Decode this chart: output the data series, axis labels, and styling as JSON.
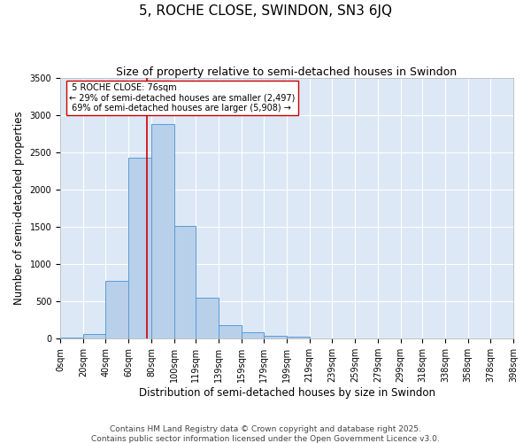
{
  "title": "5, ROCHE CLOSE, SWINDON, SN3 6JQ",
  "subtitle": "Size of property relative to semi-detached houses in Swindon",
  "xlabel": "Distribution of semi-detached houses by size in Swindon",
  "ylabel": "Number of semi-detached properties",
  "bin_labels": [
    "0sqm",
    "20sqm",
    "40sqm",
    "60sqm",
    "80sqm",
    "100sqm",
    "119sqm",
    "139sqm",
    "159sqm",
    "179sqm",
    "199sqm",
    "219sqm",
    "239sqm",
    "259sqm",
    "279sqm",
    "299sqm",
    "318sqm",
    "338sqm",
    "358sqm",
    "378sqm",
    "398sqm"
  ],
  "bin_edges": [
    0,
    20,
    40,
    60,
    80,
    100,
    119,
    139,
    159,
    179,
    199,
    219,
    239,
    259,
    279,
    299,
    318,
    338,
    358,
    378,
    398
  ],
  "bar_heights": [
    20,
    60,
    780,
    2430,
    2880,
    1520,
    550,
    185,
    90,
    40,
    25,
    10,
    5,
    3,
    2,
    1,
    0,
    0,
    0,
    0
  ],
  "bar_color": "#b8d0ea",
  "bar_edge_color": "#5b9bd5",
  "property_size": 76,
  "property_label": "5 ROCHE CLOSE: 76sqm",
  "pct_smaller": 29,
  "pct_larger": 69,
  "n_smaller": 2497,
  "n_larger": 5908,
  "vline_color": "#cc0000",
  "annotation_box_color": "#ffffff",
  "annotation_box_edge": "#cc0000",
  "ylim": [
    0,
    3500
  ],
  "yticks": [
    0,
    500,
    1000,
    1500,
    2000,
    2500,
    3000,
    3500
  ],
  "bg_color": "#dce8f5",
  "grid_color": "#ffffff",
  "footer": "Contains HM Land Registry data © Crown copyright and database right 2025.\nContains public sector information licensed under the Open Government Licence v3.0.",
  "title_fontsize": 11,
  "subtitle_fontsize": 9,
  "axis_label_fontsize": 8.5,
  "tick_fontsize": 7,
  "footer_fontsize": 6.5
}
